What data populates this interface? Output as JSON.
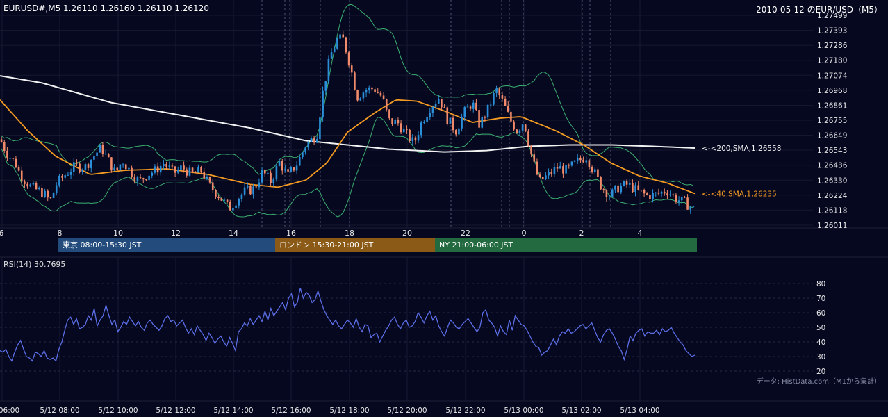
{
  "header": {
    "symbol_quote": "EURUSD#,M5 1.26110 1.26160 1.26110 1.26120",
    "title": "2010-05-12 のEUR/USD（M5）"
  },
  "colors": {
    "background": "#060820",
    "bull": "#2a8fd8",
    "bear": "#f08a6a",
    "sma200": "#f2f2f2",
    "sma40": "#f59b22",
    "bollinger": "#3bb071",
    "rsi": "#5b6ee6",
    "session_tokyo": "#234c7d",
    "session_london": "#8a5a16",
    "session_ny": "#246a40"
  },
  "chart_data": [
    {
      "type": "candlestick",
      "title": "EURUSD#,M5",
      "ylim": [
        1.26011,
        1.27499
      ],
      "y_ticks": [
        "1.27499",
        "1.27393",
        "1.27286",
        "1.27180",
        "1.27074",
        "1.26968",
        "1.26861",
        "1.26755",
        "1.26649",
        "1.26543",
        "1.26436",
        "1.26330",
        "1.26224",
        "1.26118",
        "1.26011"
      ],
      "x_tick_labels": [
        "6",
        "8",
        "10",
        "12",
        "14",
        "16",
        "18",
        "20",
        "22",
        "0",
        "2",
        "4"
      ],
      "anchors": [
        {
          "x": 0,
          "price": 1.2662
        },
        {
          "x": 10,
          "price": 1.2652
        },
        {
          "x": 22,
          "price": 1.2645
        },
        {
          "x": 30,
          "price": 1.2636
        },
        {
          "x": 45,
          "price": 1.2628
        },
        {
          "x": 62,
          "price": 1.2624
        },
        {
          "x": 72,
          "price": 1.2618
        },
        {
          "x": 82,
          "price": 1.2631
        },
        {
          "x": 94,
          "price": 1.2637
        },
        {
          "x": 108,
          "price": 1.2643
        },
        {
          "x": 122,
          "price": 1.2642
        },
        {
          "x": 136,
          "price": 1.2651
        },
        {
          "x": 146,
          "price": 1.2656
        },
        {
          "x": 156,
          "price": 1.2647
        },
        {
          "x": 166,
          "price": 1.2638
        },
        {
          "x": 176,
          "price": 1.2647
        },
        {
          "x": 188,
          "price": 1.2639
        },
        {
          "x": 200,
          "price": 1.2632
        },
        {
          "x": 212,
          "price": 1.2637
        },
        {
          "x": 224,
          "price": 1.264
        },
        {
          "x": 236,
          "price": 1.2645
        },
        {
          "x": 250,
          "price": 1.2638
        },
        {
          "x": 262,
          "price": 1.2642
        },
        {
          "x": 276,
          "price": 1.2637
        },
        {
          "x": 290,
          "price": 1.264
        },
        {
          "x": 300,
          "price": 1.263
        },
        {
          "x": 315,
          "price": 1.2622
        },
        {
          "x": 330,
          "price": 1.2613
        },
        {
          "x": 342,
          "price": 1.262
        },
        {
          "x": 352,
          "price": 1.2625
        },
        {
          "x": 366,
          "price": 1.2627
        },
        {
          "x": 378,
          "price": 1.2639
        },
        {
          "x": 390,
          "price": 1.2632
        },
        {
          "x": 402,
          "price": 1.2646
        },
        {
          "x": 414,
          "price": 1.2636
        },
        {
          "x": 428,
          "price": 1.2645
        },
        {
          "x": 440,
          "price": 1.2658
        },
        {
          "x": 456,
          "price": 1.2665
        },
        {
          "x": 466,
          "price": 1.27
        },
        {
          "x": 476,
          "price": 1.2722
        },
        {
          "x": 486,
          "price": 1.2733
        },
        {
          "x": 494,
          "price": 1.2733
        },
        {
          "x": 504,
          "price": 1.2714
        },
        {
          "x": 514,
          "price": 1.2692
        },
        {
          "x": 526,
          "price": 1.2697
        },
        {
          "x": 538,
          "price": 1.2698
        },
        {
          "x": 550,
          "price": 1.2692
        },
        {
          "x": 560,
          "price": 1.2675
        },
        {
          "x": 572,
          "price": 1.2674
        },
        {
          "x": 584,
          "price": 1.2666
        },
        {
          "x": 596,
          "price": 1.2659
        },
        {
          "x": 606,
          "price": 1.2673
        },
        {
          "x": 618,
          "price": 1.2684
        },
        {
          "x": 632,
          "price": 1.2692
        },
        {
          "x": 644,
          "price": 1.2676
        },
        {
          "x": 656,
          "price": 1.2668
        },
        {
          "x": 668,
          "price": 1.2681
        },
        {
          "x": 680,
          "price": 1.2688
        },
        {
          "x": 690,
          "price": 1.2672
        },
        {
          "x": 702,
          "price": 1.2683
        },
        {
          "x": 714,
          "price": 1.2697
        },
        {
          "x": 724,
          "price": 1.2688
        },
        {
          "x": 734,
          "price": 1.2676
        },
        {
          "x": 744,
          "price": 1.2668
        },
        {
          "x": 754,
          "price": 1.2675
        },
        {
          "x": 766,
          "price": 1.2648
        },
        {
          "x": 776,
          "price": 1.2632
        },
        {
          "x": 790,
          "price": 1.2637
        },
        {
          "x": 802,
          "price": 1.2642
        },
        {
          "x": 816,
          "price": 1.264
        },
        {
          "x": 830,
          "price": 1.2646
        },
        {
          "x": 844,
          "price": 1.265
        },
        {
          "x": 856,
          "price": 1.2638
        },
        {
          "x": 866,
          "price": 1.2628
        },
        {
          "x": 878,
          "price": 1.2622
        },
        {
          "x": 890,
          "price": 1.2628
        },
        {
          "x": 904,
          "price": 1.263
        },
        {
          "x": 918,
          "price": 1.2625
        },
        {
          "x": 932,
          "price": 1.2622
        },
        {
          "x": 946,
          "price": 1.2623
        },
        {
          "x": 960,
          "price": 1.2626
        },
        {
          "x": 972,
          "price": 1.262
        },
        {
          "x": 986,
          "price": 1.2617
        },
        {
          "x": 1000,
          "price": 1.2612
        }
      ],
      "sma200": {
        "label": "<-<200,SMA,1.26558",
        "anchors": [
          {
            "x": 0,
            "price": 1.2707
          },
          {
            "x": 60,
            "price": 1.2702
          },
          {
            "x": 160,
            "price": 1.2688
          },
          {
            "x": 260,
            "price": 1.2679
          },
          {
            "x": 360,
            "price": 1.267
          },
          {
            "x": 440,
            "price": 1.2661
          },
          {
            "x": 500,
            "price": 1.2658
          },
          {
            "x": 560,
            "price": 1.2655
          },
          {
            "x": 640,
            "price": 1.2653
          },
          {
            "x": 700,
            "price": 1.2654
          },
          {
            "x": 760,
            "price": 1.2657
          },
          {
            "x": 820,
            "price": 1.2658
          },
          {
            "x": 880,
            "price": 1.2658
          },
          {
            "x": 940,
            "price": 1.2657
          },
          {
            "x": 1000,
            "price": 1.26558
          }
        ]
      },
      "sma40": {
        "label": "<-<40,SMA,1.26235",
        "anchors": [
          {
            "x": 0,
            "price": 1.269
          },
          {
            "x": 40,
            "price": 1.2668
          },
          {
            "x": 80,
            "price": 1.265
          },
          {
            "x": 130,
            "price": 1.2637
          },
          {
            "x": 180,
            "price": 1.264
          },
          {
            "x": 240,
            "price": 1.2641
          },
          {
            "x": 300,
            "price": 1.2637
          },
          {
            "x": 360,
            "price": 1.263
          },
          {
            "x": 400,
            "price": 1.2628
          },
          {
            "x": 440,
            "price": 1.2633
          },
          {
            "x": 470,
            "price": 1.2645
          },
          {
            "x": 500,
            "price": 1.2667
          },
          {
            "x": 540,
            "price": 1.2681
          },
          {
            "x": 570,
            "price": 1.269
          },
          {
            "x": 600,
            "price": 1.2689
          },
          {
            "x": 640,
            "price": 1.2682
          },
          {
            "x": 680,
            "price": 1.2674
          },
          {
            "x": 720,
            "price": 1.2677
          },
          {
            "x": 750,
            "price": 1.2678
          },
          {
            "x": 765,
            "price": 1.2675
          },
          {
            "x": 800,
            "price": 1.2668
          },
          {
            "x": 840,
            "price": 1.2658
          },
          {
            "x": 880,
            "price": 1.2645
          },
          {
            "x": 920,
            "price": 1.2636
          },
          {
            "x": 960,
            "price": 1.2631
          },
          {
            "x": 1000,
            "price": 1.26235
          }
        ]
      },
      "hline_price": 1.266
    },
    {
      "type": "line",
      "title": "RSI(14) 30.7695",
      "ylim": [
        20,
        80
      ],
      "y_ticks": [
        80,
        70,
        60,
        50,
        40,
        30,
        20
      ],
      "x_tick_labels": [
        "06:00",
        "5/12 08:00",
        "5/12 10:00",
        "5/12 12:00",
        "5/12 14:00",
        "5/12 16:00",
        "5/12 18:00",
        "5/12 20:00",
        "5/12 22:00",
        "5/13 00:00",
        "5/13 02:00",
        "5/13 04:00"
      ],
      "values": [
        34,
        33,
        35,
        30,
        27,
        33,
        38,
        41,
        35,
        30,
        29,
        27,
        33,
        32,
        30,
        34,
        29,
        28,
        29,
        27,
        35,
        40,
        48,
        55,
        57,
        52,
        56,
        49,
        50,
        52,
        58,
        55,
        63,
        51,
        55,
        58,
        65,
        58,
        52,
        55,
        47,
        50,
        54,
        52,
        57,
        54,
        51,
        54,
        50,
        48,
        53,
        55,
        52,
        50,
        48,
        51,
        56,
        58,
        54,
        55,
        51,
        53,
        55,
        50,
        46,
        49,
        45,
        51,
        48,
        45,
        41,
        46,
        43,
        39,
        42,
        44,
        40,
        37,
        43,
        39,
        34,
        47,
        49,
        53,
        51,
        56,
        52,
        55,
        58,
        54,
        61,
        55,
        63,
        58,
        61,
        64,
        67,
        62,
        70,
        73,
        64,
        67,
        77,
        70,
        74,
        72,
        67,
        69,
        75,
        68,
        62,
        58,
        55,
        52,
        55,
        51,
        49,
        52,
        55,
        53,
        50,
        56,
        50,
        47,
        52,
        51,
        43,
        45,
        46,
        40,
        44,
        48,
        51,
        55,
        57,
        52,
        49,
        53,
        55,
        50,
        51,
        54,
        60,
        57,
        53,
        58,
        61,
        55,
        58,
        51,
        47,
        44,
        50,
        55,
        53,
        50,
        49,
        52,
        54,
        56,
        53,
        50,
        47,
        50,
        60,
        62,
        55,
        53,
        50,
        44,
        51,
        47,
        45,
        55,
        48,
        58,
        55,
        52,
        51,
        48,
        44,
        40,
        37,
        36,
        31,
        33,
        34,
        38,
        42,
        38,
        44,
        47,
        46,
        49,
        46,
        47,
        49,
        51,
        52,
        49,
        51,
        53,
        48,
        43,
        40,
        45,
        48,
        49,
        46,
        42,
        37,
        34,
        28,
        35,
        44,
        41,
        46,
        48,
        49,
        44,
        47,
        46,
        46,
        48,
        45,
        49,
        47,
        48,
        50,
        46,
        43,
        40,
        38,
        34,
        32,
        30,
        31
      ]
    }
  ],
  "sessions": [
    {
      "label": "東京 08:00-15:30 JST"
    },
    {
      "label": "ロンドン 15:30-21:00 JST"
    },
    {
      "label": "NY 21:00-06:00 JST"
    }
  ],
  "rsi_panel": {
    "label": "RSI(14) 30.7695"
  },
  "credit": "データ: HistData.com（M1から集計）"
}
